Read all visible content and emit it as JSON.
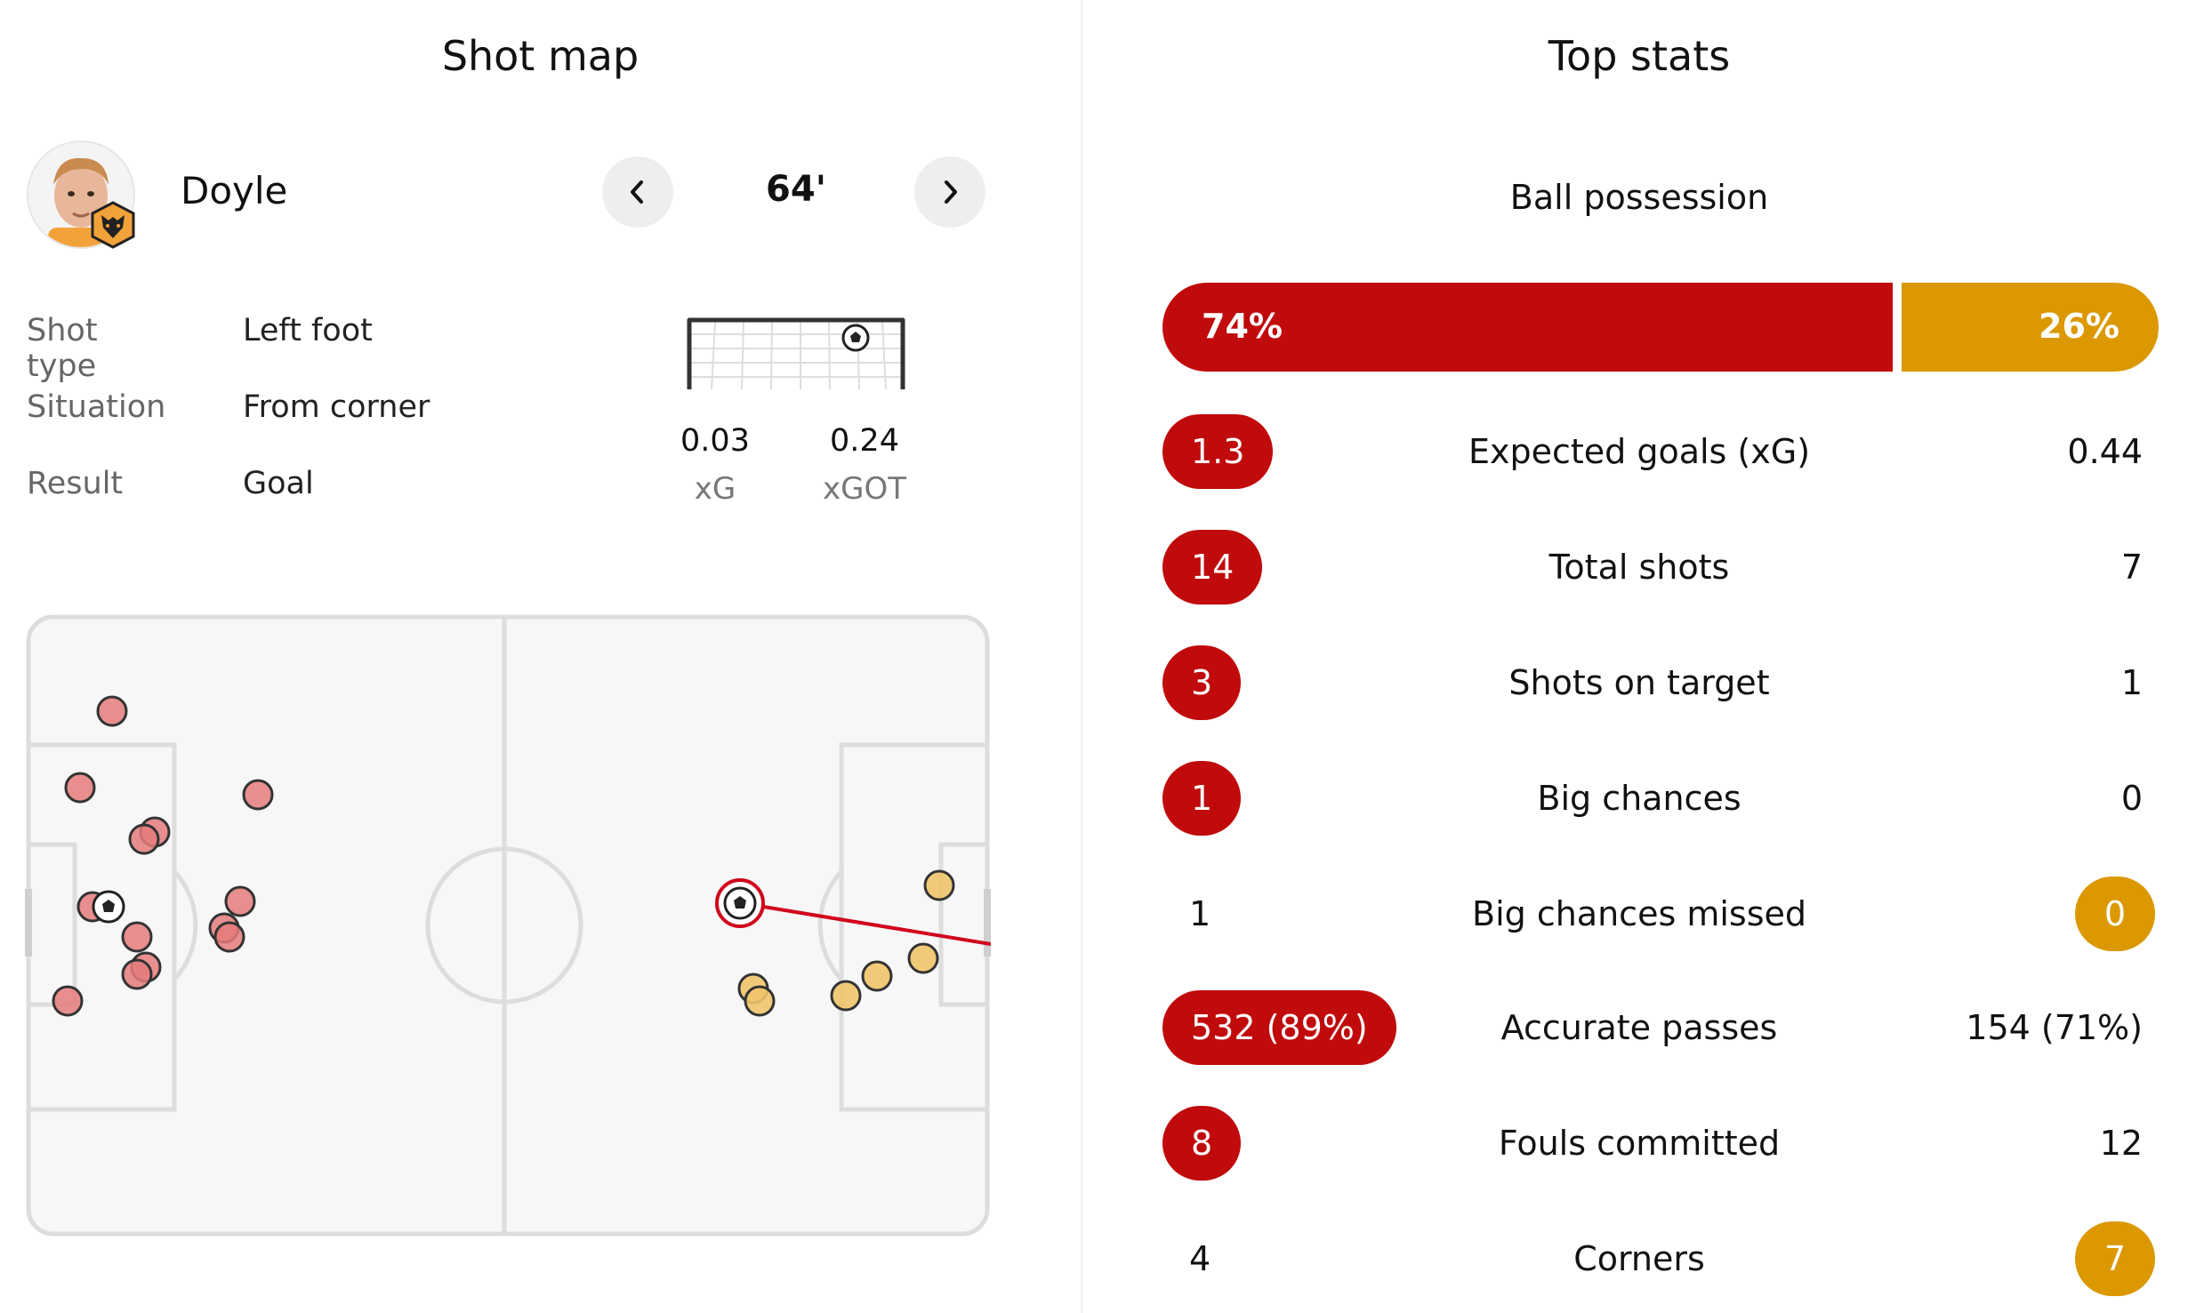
{
  "shot_map": {
    "title": "Shot map",
    "player": {
      "name": "Doyle"
    },
    "minute": "64'",
    "details": [
      {
        "label": "Shot type",
        "value": "Left foot"
      },
      {
        "label": "Situation",
        "value": "From corner"
      },
      {
        "label": "Result",
        "value": "Goal"
      }
    ],
    "xg": {
      "value": "0.03",
      "label": "xG"
    },
    "xgot": {
      "value": "0.24",
      "label": "xGOT"
    },
    "colors": {
      "home": "#e07a7a",
      "away": "#f0c46a",
      "selected": "#d0021b"
    }
  },
  "top_stats": {
    "title": "Top stats",
    "possession": {
      "label": "Ball possession",
      "home": "74%",
      "away": "26%",
      "home_pct": 74
    },
    "rows": [
      {
        "name": "Expected goals (xG)",
        "home": "1.3",
        "away": "0.44",
        "leader": "home"
      },
      {
        "name": "Total shots",
        "home": "14",
        "away": "7",
        "leader": "home"
      },
      {
        "name": "Shots on target",
        "home": "3",
        "away": "1",
        "leader": "home"
      },
      {
        "name": "Big chances",
        "home": "1",
        "away": "0",
        "leader": "home"
      },
      {
        "name": "Big chances missed",
        "home": "1",
        "away": "0",
        "leader": "away"
      },
      {
        "name": "Accurate passes",
        "home": "532 (89%)",
        "away": "154 (71%)",
        "leader": "home"
      },
      {
        "name": "Fouls committed",
        "home": "8",
        "away": "12",
        "leader": "home"
      },
      {
        "name": "Corners",
        "home": "4",
        "away": "7",
        "leader": "away"
      }
    ],
    "colors": {
      "home": "#c00a0b",
      "away": "#db9800"
    }
  }
}
